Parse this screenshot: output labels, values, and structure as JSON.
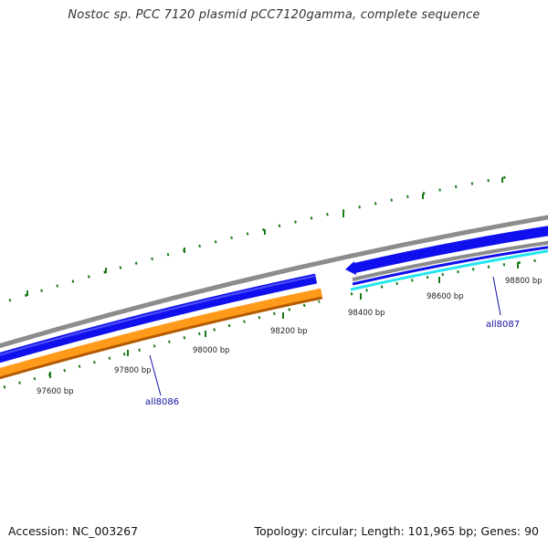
{
  "title": "Nostoc sp. PCC 7120 plasmid pCC7120gamma, complete sequence",
  "footer": {
    "accession": "Accession: NC_003267",
    "summary": "Topology: circular; Length: 101,965 bp; Genes: 90"
  },
  "colors": {
    "backbone": "#8c8c8c",
    "forward_gene": "#1010ee",
    "reverse_gene": "#ff9a1a",
    "reverse_gene_edge": "#b35a00",
    "cyan_track": "#22e6f0",
    "tick": "#1a7a1a",
    "gene_label": "#1010a0"
  },
  "ruler": {
    "labels": [
      "97600 bp",
      "97800 bp",
      "98000 bp",
      "98200 bp",
      "98400 bp",
      "98600 bp",
      "98800 bp"
    ]
  },
  "genes": [
    {
      "name": "all8086",
      "strand": "reverse",
      "color": "#ff9a1a"
    },
    {
      "name": "all8087",
      "strand": "forward",
      "color": "#1010ee"
    }
  ]
}
